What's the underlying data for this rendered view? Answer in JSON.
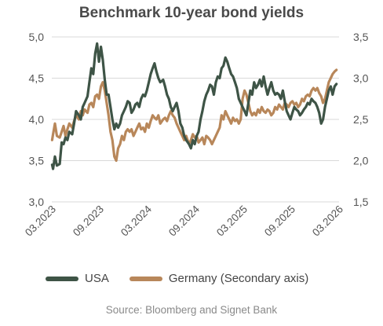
{
  "chart_data": {
    "type": "line",
    "title": "Benchmark 10-year bond yields",
    "source": "Source: Bloomberg and Signet Bank",
    "x_ticks": [
      "03.2023",
      "09.2023",
      "03.2024",
      "09.2024",
      "03.2025",
      "09.2025",
      "03.2026"
    ],
    "y_left": {
      "ticks": [
        "3,0",
        "3,5",
        "4,0",
        "4,5",
        "5,0"
      ],
      "min": 3.0,
      "max": 5.0
    },
    "y_right": {
      "ticks": [
        "1,5",
        "2,0",
        "2,5",
        "3,0",
        "3,5"
      ],
      "min": 1.5,
      "max": 3.5
    },
    "x_range": [
      2023.167,
      2026.167
    ],
    "grid": "horizontal",
    "legend_position": "bottom",
    "series": [
      {
        "name": "USA",
        "axis": "left",
        "color": "#3e5446",
        "points": [
          [
            2023.17,
            3.45
          ],
          [
            2023.18,
            3.4
          ],
          [
            2023.2,
            3.55
          ],
          [
            2023.22,
            3.44
          ],
          [
            2023.25,
            3.46
          ],
          [
            2023.27,
            3.72
          ],
          [
            2023.29,
            3.7
          ],
          [
            2023.31,
            3.78
          ],
          [
            2023.33,
            3.75
          ],
          [
            2023.35,
            3.85
          ],
          [
            2023.38,
            3.82
          ],
          [
            2023.4,
            3.95
          ],
          [
            2023.42,
            4.1
          ],
          [
            2023.45,
            4.05
          ],
          [
            2023.47,
            4.0
          ],
          [
            2023.49,
            4.15
          ],
          [
            2023.51,
            4.2
          ],
          [
            2023.54,
            4.28
          ],
          [
            2023.56,
            4.45
          ],
          [
            2023.58,
            4.62
          ],
          [
            2023.6,
            4.55
          ],
          [
            2023.62,
            4.8
          ],
          [
            2023.64,
            4.92
          ],
          [
            2023.66,
            4.7
          ],
          [
            2023.68,
            4.88
          ],
          [
            2023.7,
            4.72
          ],
          [
            2023.72,
            4.48
          ],
          [
            2023.74,
            4.3
          ],
          [
            2023.76,
            4.3
          ],
          [
            2023.78,
            4.15
          ],
          [
            2023.8,
            4.0
          ],
          [
            2023.82,
            3.88
          ],
          [
            2023.84,
            3.95
          ],
          [
            2023.86,
            3.9
          ],
          [
            2023.88,
            3.95
          ],
          [
            2023.9,
            4.05
          ],
          [
            2023.92,
            4.1
          ],
          [
            2023.94,
            4.15
          ],
          [
            2023.96,
            4.22
          ],
          [
            2023.98,
            4.2
          ],
          [
            2024.0,
            4.08
          ],
          [
            2024.02,
            4.12
          ],
          [
            2024.04,
            4.18
          ],
          [
            2024.06,
            4.2
          ],
          [
            2024.08,
            4.15
          ],
          [
            2024.1,
            4.25
          ],
          [
            2024.12,
            4.3
          ],
          [
            2024.14,
            4.28
          ],
          [
            2024.16,
            4.35
          ],
          [
            2024.18,
            4.45
          ],
          [
            2024.2,
            4.55
          ],
          [
            2024.22,
            4.62
          ],
          [
            2024.24,
            4.68
          ],
          [
            2024.26,
            4.58
          ],
          [
            2024.28,
            4.5
          ],
          [
            2024.3,
            4.45
          ],
          [
            2024.33,
            4.48
          ],
          [
            2024.35,
            4.4
          ],
          [
            2024.37,
            4.3
          ],
          [
            2024.39,
            4.25
          ],
          [
            2024.41,
            4.15
          ],
          [
            2024.43,
            4.1
          ],
          [
            2024.45,
            4.15
          ],
          [
            2024.47,
            4.2
          ],
          [
            2024.49,
            4.1
          ],
          [
            2024.51,
            3.95
          ],
          [
            2024.53,
            3.9
          ],
          [
            2024.55,
            3.8
          ],
          [
            2024.57,
            3.75
          ],
          [
            2024.6,
            3.7
          ],
          [
            2024.62,
            3.65
          ],
          [
            2024.64,
            3.75
          ],
          [
            2024.66,
            3.7
          ],
          [
            2024.68,
            3.8
          ],
          [
            2024.7,
            3.85
          ],
          [
            2024.72,
            4.0
          ],
          [
            2024.74,
            4.1
          ],
          [
            2024.76,
            4.22
          ],
          [
            2024.78,
            4.3
          ],
          [
            2024.8,
            4.35
          ],
          [
            2024.82,
            4.42
          ],
          [
            2024.84,
            4.4
          ],
          [
            2024.86,
            4.3
          ],
          [
            2024.88,
            4.45
          ],
          [
            2024.9,
            4.52
          ],
          [
            2024.92,
            4.5
          ],
          [
            2024.94,
            4.62
          ],
          [
            2024.96,
            4.65
          ],
          [
            2024.98,
            4.75
          ],
          [
            2025.0,
            4.7
          ],
          [
            2025.02,
            4.62
          ],
          [
            2025.04,
            4.55
          ],
          [
            2025.06,
            4.52
          ],
          [
            2025.08,
            4.45
          ],
          [
            2025.1,
            4.38
          ],
          [
            2025.12,
            4.25
          ],
          [
            2025.14,
            4.2
          ],
          [
            2025.16,
            4.15
          ],
          [
            2025.18,
            4.1
          ],
          [
            2025.2,
            4.05
          ],
          [
            2025.22,
            4.2
          ],
          [
            2025.24,
            4.35
          ],
          [
            2025.26,
            4.3
          ],
          [
            2025.28,
            4.45
          ],
          [
            2025.3,
            4.38
          ],
          [
            2025.32,
            4.42
          ],
          [
            2025.34,
            4.48
          ],
          [
            2025.36,
            4.4
          ],
          [
            2025.38,
            4.52
          ],
          [
            2025.4,
            4.4
          ],
          [
            2025.42,
            4.3
          ],
          [
            2025.44,
            4.38
          ],
          [
            2025.46,
            4.45
          ],
          [
            2025.48,
            4.35
          ],
          [
            2025.5,
            4.3
          ],
          [
            2025.52,
            4.32
          ],
          [
            2025.54,
            4.3
          ],
          [
            2025.56,
            4.25
          ],
          [
            2025.58,
            4.35
          ],
          [
            2025.6,
            4.22
          ],
          [
            2025.62,
            4.1
          ],
          [
            2025.64,
            4.05
          ],
          [
            2025.66,
            4.0
          ],
          [
            2025.68,
            4.08
          ],
          [
            2025.7,
            4.15
          ],
          [
            2025.72,
            4.12
          ],
          [
            2025.74,
            4.1
          ],
          [
            2025.76,
            4.05
          ],
          [
            2025.78,
            4.08
          ],
          [
            2025.8,
            4.12
          ],
          [
            2025.82,
            4.15
          ],
          [
            2025.84,
            4.2
          ],
          [
            2025.86,
            4.18
          ],
          [
            2025.88,
            4.25
          ],
          [
            2025.9,
            4.22
          ],
          [
            2025.92,
            4.2
          ],
          [
            2025.94,
            4.15
          ],
          [
            2025.96,
            4.08
          ],
          [
            2025.98,
            3.95
          ],
          [
            2026.0,
            4.0
          ],
          [
            2026.02,
            4.15
          ],
          [
            2026.04,
            4.25
          ],
          [
            2026.06,
            4.35
          ],
          [
            2026.08,
            4.4
          ],
          [
            2026.1,
            4.3
          ],
          [
            2026.12,
            4.4
          ],
          [
            2026.14,
            4.43
          ]
        ]
      },
      {
        "name": "Germany (Secondary axis)",
        "axis": "right",
        "color": "#b8875a",
        "points": [
          [
            2023.17,
            2.25
          ],
          [
            2023.18,
            2.32
          ],
          [
            2023.2,
            2.45
          ],
          [
            2023.22,
            2.3
          ],
          [
            2023.25,
            2.28
          ],
          [
            2023.27,
            2.35
          ],
          [
            2023.29,
            2.42
          ],
          [
            2023.31,
            2.3
          ],
          [
            2023.33,
            2.38
          ],
          [
            2023.35,
            2.45
          ],
          [
            2023.38,
            2.4
          ],
          [
            2023.4,
            2.48
          ],
          [
            2023.42,
            2.55
          ],
          [
            2023.45,
            2.5
          ],
          [
            2023.47,
            2.6
          ],
          [
            2023.49,
            2.55
          ],
          [
            2023.51,
            2.62
          ],
          [
            2023.54,
            2.58
          ],
          [
            2023.56,
            2.68
          ],
          [
            2023.58,
            2.7
          ],
          [
            2023.6,
            2.65
          ],
          [
            2023.62,
            2.78
          ],
          [
            2023.64,
            2.8
          ],
          [
            2023.66,
            2.75
          ],
          [
            2023.68,
            2.9
          ],
          [
            2023.7,
            2.95
          ],
          [
            2023.72,
            2.85
          ],
          [
            2023.74,
            2.7
          ],
          [
            2023.76,
            2.55
          ],
          [
            2023.78,
            2.35
          ],
          [
            2023.8,
            2.25
          ],
          [
            2023.82,
            2.05
          ],
          [
            2023.84,
            2.0
          ],
          [
            2023.86,
            2.15
          ],
          [
            2023.88,
            2.2
          ],
          [
            2023.9,
            2.3
          ],
          [
            2023.92,
            2.25
          ],
          [
            2023.94,
            2.35
          ],
          [
            2023.96,
            2.38
          ],
          [
            2023.98,
            2.35
          ],
          [
            2024.0,
            2.38
          ],
          [
            2024.02,
            2.3
          ],
          [
            2024.04,
            2.35
          ],
          [
            2024.06,
            2.4
          ],
          [
            2024.08,
            2.45
          ],
          [
            2024.1,
            2.38
          ],
          [
            2024.12,
            2.4
          ],
          [
            2024.14,
            2.35
          ],
          [
            2024.16,
            2.45
          ],
          [
            2024.18,
            2.4
          ],
          [
            2024.2,
            2.48
          ],
          [
            2024.22,
            2.55
          ],
          [
            2024.24,
            2.52
          ],
          [
            2024.26,
            2.5
          ],
          [
            2024.28,
            2.55
          ],
          [
            2024.3,
            2.45
          ],
          [
            2024.33,
            2.5
          ],
          [
            2024.35,
            2.52
          ],
          [
            2024.37,
            2.48
          ],
          [
            2024.39,
            2.55
          ],
          [
            2024.41,
            2.6
          ],
          [
            2024.43,
            2.55
          ],
          [
            2024.45,
            2.52
          ],
          [
            2024.47,
            2.45
          ],
          [
            2024.49,
            2.4
          ],
          [
            2024.51,
            2.35
          ],
          [
            2024.53,
            2.3
          ],
          [
            2024.55,
            2.25
          ],
          [
            2024.57,
            2.3
          ],
          [
            2024.6,
            2.2
          ],
          [
            2024.62,
            2.25
          ],
          [
            2024.64,
            2.32
          ],
          [
            2024.66,
            2.28
          ],
          [
            2024.68,
            2.3
          ],
          [
            2024.7,
            2.22
          ],
          [
            2024.72,
            2.25
          ],
          [
            2024.74,
            2.28
          ],
          [
            2024.76,
            2.2
          ],
          [
            2024.78,
            2.3
          ],
          [
            2024.8,
            2.28
          ],
          [
            2024.82,
            2.25
          ],
          [
            2024.84,
            2.2
          ],
          [
            2024.86,
            2.25
          ],
          [
            2024.88,
            2.3
          ],
          [
            2024.9,
            2.35
          ],
          [
            2024.92,
            2.4
          ],
          [
            2024.94,
            2.55
          ],
          [
            2024.96,
            2.5
          ],
          [
            2024.98,
            2.6
          ],
          [
            2025.0,
            2.55
          ],
          [
            2025.02,
            2.5
          ],
          [
            2025.04,
            2.45
          ],
          [
            2025.06,
            2.52
          ],
          [
            2025.08,
            2.48
          ],
          [
            2025.1,
            2.5
          ],
          [
            2025.12,
            2.45
          ],
          [
            2025.14,
            2.5
          ],
          [
            2025.16,
            2.75
          ],
          [
            2025.18,
            2.85
          ],
          [
            2025.2,
            2.8
          ],
          [
            2025.22,
            2.7
          ],
          [
            2025.24,
            2.6
          ],
          [
            2025.26,
            2.55
          ],
          [
            2025.28,
            2.58
          ],
          [
            2025.3,
            2.55
          ],
          [
            2025.32,
            2.62
          ],
          [
            2025.34,
            2.58
          ],
          [
            2025.36,
            2.65
          ],
          [
            2025.38,
            2.6
          ],
          [
            2025.4,
            2.58
          ],
          [
            2025.42,
            2.62
          ],
          [
            2025.44,
            2.6
          ],
          [
            2025.46,
            2.55
          ],
          [
            2025.48,
            2.58
          ],
          [
            2025.5,
            2.65
          ],
          [
            2025.52,
            2.62
          ],
          [
            2025.54,
            2.68
          ],
          [
            2025.56,
            2.65
          ],
          [
            2025.58,
            2.62
          ],
          [
            2025.6,
            2.7
          ],
          [
            2025.62,
            2.68
          ],
          [
            2025.64,
            2.65
          ],
          [
            2025.66,
            2.7
          ],
          [
            2025.68,
            2.72
          ],
          [
            2025.7,
            2.68
          ],
          [
            2025.72,
            2.7
          ],
          [
            2025.74,
            2.65
          ],
          [
            2025.76,
            2.68
          ],
          [
            2025.78,
            2.75
          ],
          [
            2025.8,
            2.72
          ],
          [
            2025.82,
            2.78
          ],
          [
            2025.84,
            2.8
          ],
          [
            2025.86,
            2.78
          ],
          [
            2025.88,
            2.85
          ],
          [
            2025.9,
            2.88
          ],
          [
            2025.92,
            2.85
          ],
          [
            2025.94,
            2.88
          ],
          [
            2025.96,
            2.82
          ],
          [
            2025.98,
            2.78
          ],
          [
            2026.0,
            2.7
          ],
          [
            2026.02,
            2.75
          ],
          [
            2026.04,
            2.85
          ],
          [
            2026.06,
            2.95
          ],
          [
            2026.08,
            3.0
          ],
          [
            2026.1,
            3.05
          ],
          [
            2026.12,
            3.08
          ],
          [
            2026.14,
            3.1
          ]
        ]
      }
    ]
  }
}
